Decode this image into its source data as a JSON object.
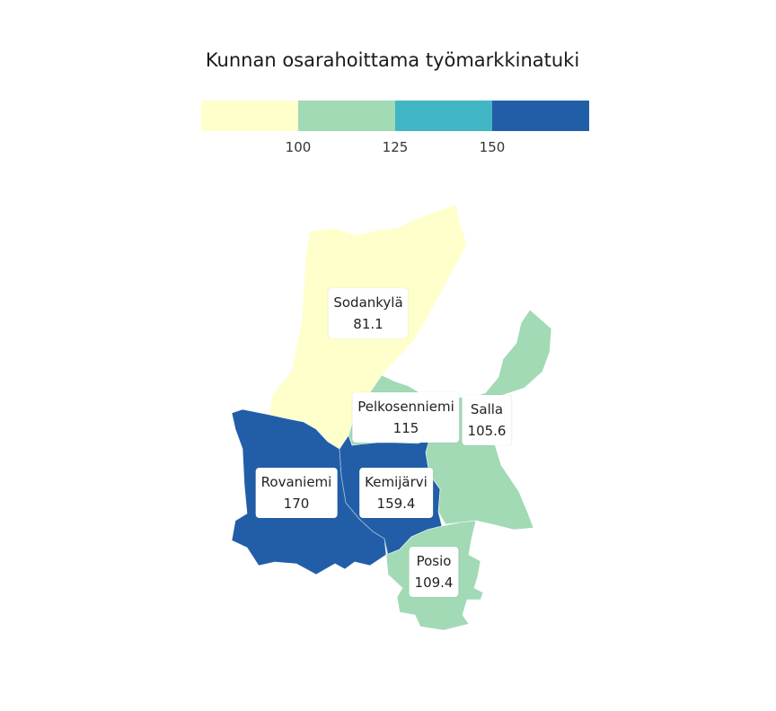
{
  "title": "Kunnan osarahoittama työmarkkinatuki",
  "legend": {
    "colors": [
      "#ffffcc",
      "#a1dab4",
      "#41b6c4",
      "#225ea8"
    ],
    "ticks": [
      "100",
      "125",
      "150"
    ]
  },
  "regions": [
    {
      "name": "Sodankylä",
      "value": "81.1",
      "color": "#ffffcc"
    },
    {
      "name": "Pelkosenniemi",
      "value": "115",
      "color": "#a1dab4"
    },
    {
      "name": "Salla",
      "value": "105.6",
      "color": "#a1dab4"
    },
    {
      "name": "Rovaniemi",
      "value": "170",
      "color": "#225ea8"
    },
    {
      "name": "Kemijärvi",
      "value": "159.4",
      "color": "#225ea8"
    },
    {
      "name": "Posio",
      "value": "109.4",
      "color": "#a1dab4"
    }
  ]
}
